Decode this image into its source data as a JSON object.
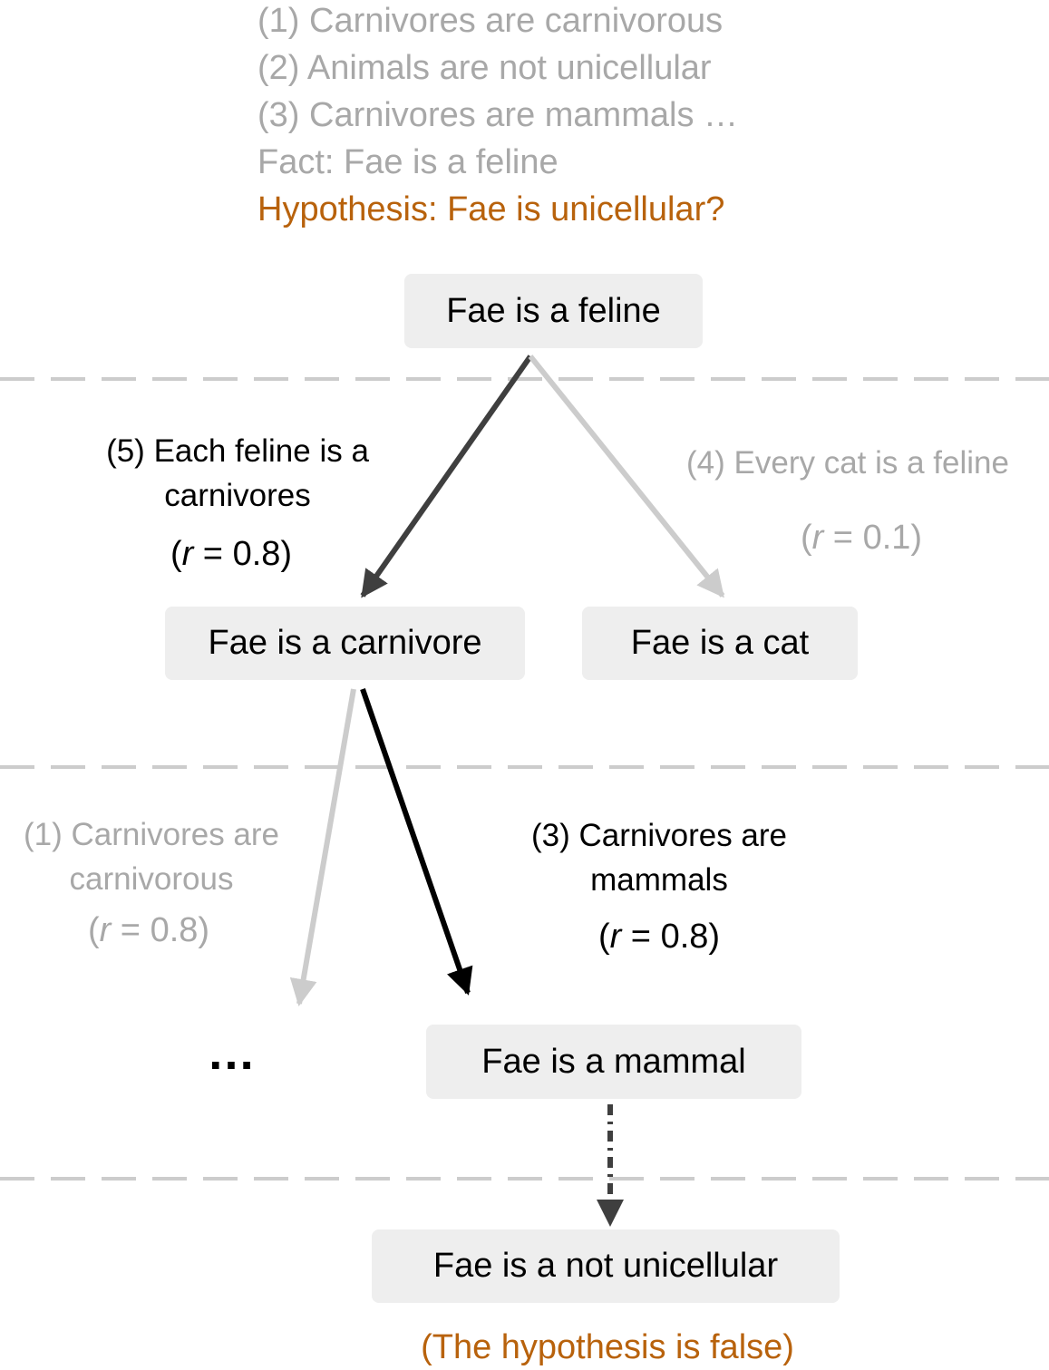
{
  "premises": [
    "(1) Carnivores are carnivorous",
    "(2) Animals are not unicellular",
    "(3) Carnivores are mammals …",
    "Fact: Fae is a feline"
  ],
  "hypothesis": "Hypothesis: Fae is unicellular?",
  "nodes": {
    "root": "Fae is a feline",
    "carnivore": "Fae is a carnivore",
    "cat": "Fae is a cat",
    "mammal": "Fae is a mammal",
    "not_unicellular": "Fae is a not unicellular"
  },
  "edges": {
    "rule5": {
      "lines": [
        "(5) Each feline is a",
        "carnivores"
      ],
      "r_value": "0.8"
    },
    "rule4": {
      "lines": [
        "(4) Every cat is a feline"
      ],
      "r_value": "0.1"
    },
    "rule1": {
      "lines": [
        "(1) Carnivores are",
        "carnivorous"
      ],
      "r_value": "0.8"
    },
    "rule3": {
      "lines": [
        "(3) Carnivores are",
        "mammals"
      ],
      "r_value": "0.8"
    }
  },
  "score_prefix": "(",
  "score_var": "r",
  "score_eq": " = ",
  "score_suffix": ")",
  "ellipsis": "…",
  "conclusion": "(The hypothesis is false)",
  "colors": {
    "hypothesis": "#b8620c",
    "muted_text": "#a8a8a8",
    "node_fill": "#eeeeee",
    "dark_arrow": "#3f3f3f",
    "black_arrow": "#000000",
    "light_arrow": "#cccccc",
    "divider": "#cccccc"
  }
}
